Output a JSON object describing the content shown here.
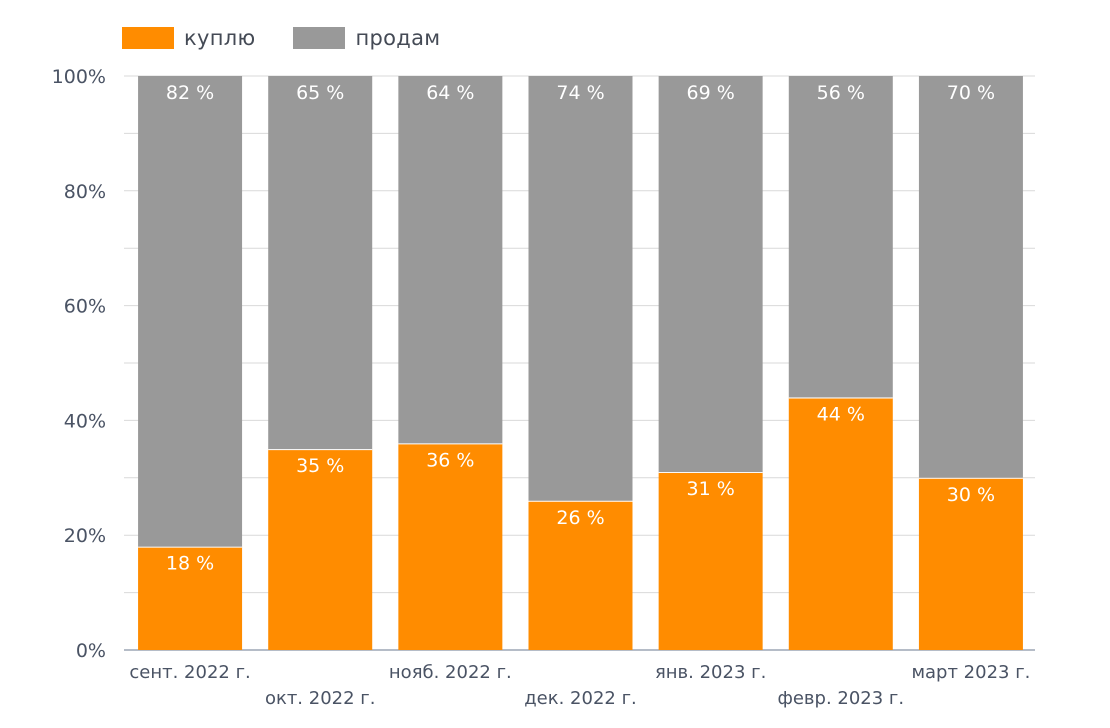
{
  "chart_data": {
    "type": "bar",
    "stacked": true,
    "categories": [
      "сент. 2022 г.",
      "окт. 2022 г.",
      "нояб. 2022 г.",
      "дек. 2022 г.",
      "янв. 2023 г.",
      "февр. 2023 г.",
      "март 2023 г."
    ],
    "series": [
      {
        "name": "куплю",
        "color": "#ff8c00",
        "values": [
          18,
          35,
          36,
          26,
          31,
          44,
          30
        ],
        "labels": [
          "18 %",
          "35 %",
          "36 %",
          "26 %",
          "31 %",
          "44 %",
          "30 %"
        ]
      },
      {
        "name": "продам",
        "color": "#999999",
        "values": [
          82,
          65,
          64,
          74,
          69,
          56,
          70
        ],
        "labels": [
          "82 %",
          "65 %",
          "64 %",
          "74 %",
          "69 %",
          "56 %",
          "70 %"
        ]
      }
    ],
    "ylim": [
      0,
      100
    ],
    "yticks": [
      0,
      20,
      40,
      60,
      80,
      100
    ],
    "ytick_labels": [
      "0%",
      "20%",
      "40%",
      "60%",
      "80%",
      "100%"
    ],
    "grid": true,
    "legend_position": "top-left"
  }
}
